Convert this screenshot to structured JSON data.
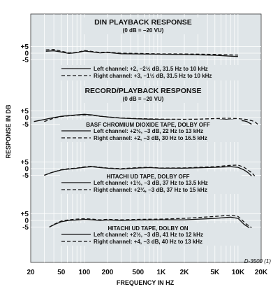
{
  "figure_tag": "D-3500 (1)",
  "chart_data": {
    "type": "line",
    "xlabel": "FREQUENCY IN HZ",
    "ylabel": "RESPONSE IN DB",
    "xscale": "log",
    "xlim": [
      20,
      20000
    ],
    "x_ticks": [
      {
        "value": 20,
        "label": "20"
      },
      {
        "value": 50,
        "label": "50"
      },
      {
        "value": 100,
        "label": "100"
      },
      {
        "value": 200,
        "label": "200"
      },
      {
        "value": 500,
        "label": "500"
      },
      {
        "value": 1000,
        "label": "1K"
      },
      {
        "value": 2000,
        "label": "2K"
      },
      {
        "value": 5000,
        "label": "5K"
      },
      {
        "value": 10000,
        "label": "10K"
      },
      {
        "value": 20000,
        "label": "20K"
      }
    ],
    "y_ticks": [
      {
        "value": 5,
        "label": "+5"
      },
      {
        "value": 0,
        "label": "0"
      },
      {
        "value": -5,
        "label": "-5"
      }
    ],
    "grid": true,
    "section_titles": [
      {
        "title": "DIN PLAYBACK RESPONSE",
        "subtitle": "(0 dB = −20 VU)"
      },
      {
        "title": "RECORD/PLAYBACK RESPONSE",
        "subtitle": "(0 dB = −20 VU)"
      }
    ],
    "panels": [
      {
        "title": "",
        "series": [
          {
            "name": "Left channel: +2, −2½ dB, 31.5 Hz to 10 kHz",
            "style": "solid",
            "x": [
              31.5,
              40,
              50,
              63,
              80,
              100,
              125,
              160,
              200,
              300,
              500,
              1000,
              2000,
              5000,
              10000
            ],
            "y": [
              1.5,
              1.8,
              0.9,
              -0.2,
              0.4,
              1.6,
              1.0,
              0.2,
              0.5,
              -0.4,
              -0.6,
              -0.8,
              -1.0,
              -1.6,
              -2.5
            ]
          },
          {
            "name": "Right channel: +3, −1½ dB, 31.5 Hz to 10 kHz",
            "style": "dashed",
            "x": [
              31.5,
              40,
              50,
              63,
              80,
              100,
              125,
              160,
              200,
              300,
              500,
              1000,
              2000,
              5000,
              10000
            ],
            "y": [
              2.5,
              2.8,
              1.5,
              0.2,
              0.6,
              2.0,
              1.3,
              0.5,
              0.8,
              0.0,
              -0.2,
              -0.5,
              -0.6,
              -0.9,
              -1.5
            ]
          }
        ]
      },
      {
        "title": "BASF CHROMIUM DIOXIDE TAPE, DOLBY OFF",
        "series": [
          {
            "name": "Left channel: +2½, −3 dB, 22 Hz to 13 kHz",
            "style": "solid",
            "x": [
              22,
              30,
              40,
              50,
              63,
              80,
              100,
              125,
              160,
              200,
              300,
              500,
              1000,
              2000,
              3000,
              5000,
              7000,
              10000,
              12000,
              13000,
              15000
            ],
            "y": [
              -3.0,
              -1.5,
              0.0,
              1.0,
              1.5,
              2.0,
              2.5,
              2.0,
              1.0,
              0.5,
              -0.5,
              -1.0,
              -1.5,
              -2.0,
              -2.0,
              -2.0,
              -1.5,
              -2.0,
              -2.5,
              -3.0,
              -5.0
            ]
          },
          {
            "name": "Right channel: +2, −3 dB, 30 Hz to 16.5 kHz",
            "style": "dashed",
            "x": [
              30,
              40,
              50,
              63,
              80,
              100,
              125,
              160,
              200,
              300,
              500,
              1000,
              2000,
              3000,
              5000,
              7000,
              10000,
              13000,
              15000,
              16500,
              18000
            ],
            "y": [
              -3.0,
              -0.5,
              0.8,
              1.3,
              1.8,
              2.0,
              1.8,
              1.0,
              0.5,
              -0.3,
              -0.8,
              -1.2,
              -1.3,
              -1.2,
              -0.8,
              -0.5,
              -0.8,
              -1.5,
              -2.3,
              -3.0,
              -5.0
            ]
          }
        ]
      },
      {
        "title": "HITACHI UD TAPE, DOLBY OFF",
        "series": [
          {
            "name": "Left channel: +1½, −3 dB, 37 Hz to 13.5 kHz",
            "style": "solid",
            "x": [
              30,
              37,
              50,
              63,
              80,
              100,
              125,
              160,
              200,
              300,
              500,
              700,
              1000,
              2000,
              5000,
              8000,
              10000,
              12000,
              13500,
              15000
            ],
            "y": [
              -5.0,
              -3.0,
              -1.0,
              -0.3,
              0.3,
              1.0,
              1.5,
              0.8,
              0.3,
              -0.3,
              0.5,
              0.8,
              0.3,
              0.3,
              1.0,
              1.5,
              1.0,
              -1.0,
              -3.0,
              -5.5
            ]
          },
          {
            "name": "Right channel: +2¾, −3 dB, 37 Hz to 15 kHz",
            "style": "dashed",
            "x": [
              30,
              37,
              50,
              63,
              80,
              100,
              125,
              160,
              200,
              300,
              500,
              700,
              1000,
              2000,
              5000,
              8000,
              10000,
              12000,
              15000,
              16500
            ],
            "y": [
              -5.0,
              -3.0,
              -0.8,
              0.0,
              0.5,
              1.3,
              1.8,
              1.0,
              0.5,
              0.0,
              0.8,
              1.0,
              0.5,
              0.6,
              1.5,
              2.5,
              2.7,
              1.0,
              -3.0,
              -5.5
            ]
          }
        ]
      },
      {
        "title": "HITACHI UD TAPE, DOLBY ON",
        "series": [
          {
            "name": "Left channel: +2½, −3 dB, 41 Hz to 12 kHz",
            "style": "solid",
            "x": [
              35,
              41,
              50,
              63,
              80,
              100,
              125,
              160,
              200,
              300,
              500,
              1000,
              2000,
              5000,
              8000,
              10000,
              12000,
              14000
            ],
            "y": [
              -5.0,
              -3.0,
              -1.0,
              0.0,
              0.3,
              0.8,
              0.5,
              0.0,
              0.3,
              0.0,
              0.3,
              0.5,
              0.5,
              1.5,
              2.5,
              1.5,
              -3.0,
              -5.5
            ]
          },
          {
            "name": "Right channel: +4, −3 dB, 40 Hz to 13 kHz",
            "style": "dashed",
            "x": [
              35,
              40,
              50,
              63,
              80,
              100,
              125,
              160,
              200,
              300,
              500,
              1000,
              2000,
              5000,
              8000,
              10000,
              13000,
              15000
            ],
            "y": [
              -5.0,
              -3.0,
              -0.5,
              0.5,
              1.0,
              1.3,
              1.0,
              0.5,
              0.8,
              0.5,
              0.8,
              1.0,
              1.5,
              3.0,
              4.0,
              3.0,
              -3.0,
              -5.5
            ]
          }
        ]
      }
    ]
  }
}
